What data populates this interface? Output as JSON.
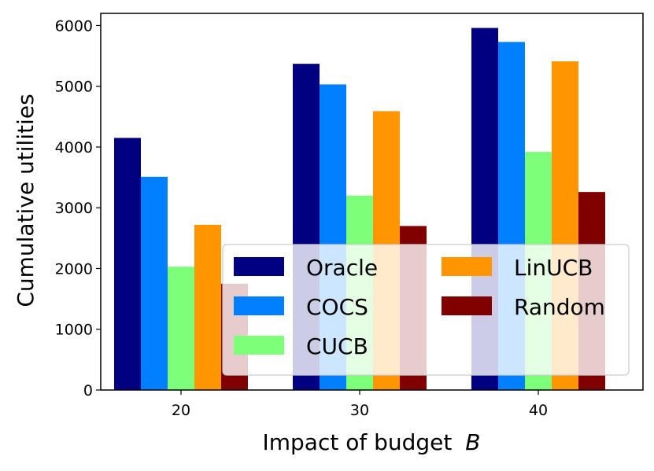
{
  "chart_data": {
    "type": "bar",
    "title": "",
    "xlabel": "Impact of budget",
    "xlabel_var": "B",
    "ylabel": "Cumulative utilities",
    "categories": [
      "20",
      "30",
      "40"
    ],
    "ylim": [
      0,
      6200
    ],
    "yticks": [
      0,
      1000,
      2000,
      3000,
      4000,
      5000,
      6000
    ],
    "legend_position": "lower-right",
    "series": [
      {
        "name": "Oracle",
        "color": "#000080",
        "values": [
          4150,
          5370,
          5960
        ]
      },
      {
        "name": "COCS",
        "color": "#0080ff",
        "values": [
          3510,
          5030,
          5730
        ]
      },
      {
        "name": "CUCB",
        "color": "#7dff7a",
        "values": [
          2030,
          3200,
          3920
        ]
      },
      {
        "name": "LinUCB",
        "color": "#ff9500",
        "values": [
          2720,
          4590,
          5410
        ]
      },
      {
        "name": "Random",
        "color": "#800000",
        "values": [
          1750,
          2700,
          3260
        ]
      }
    ]
  }
}
